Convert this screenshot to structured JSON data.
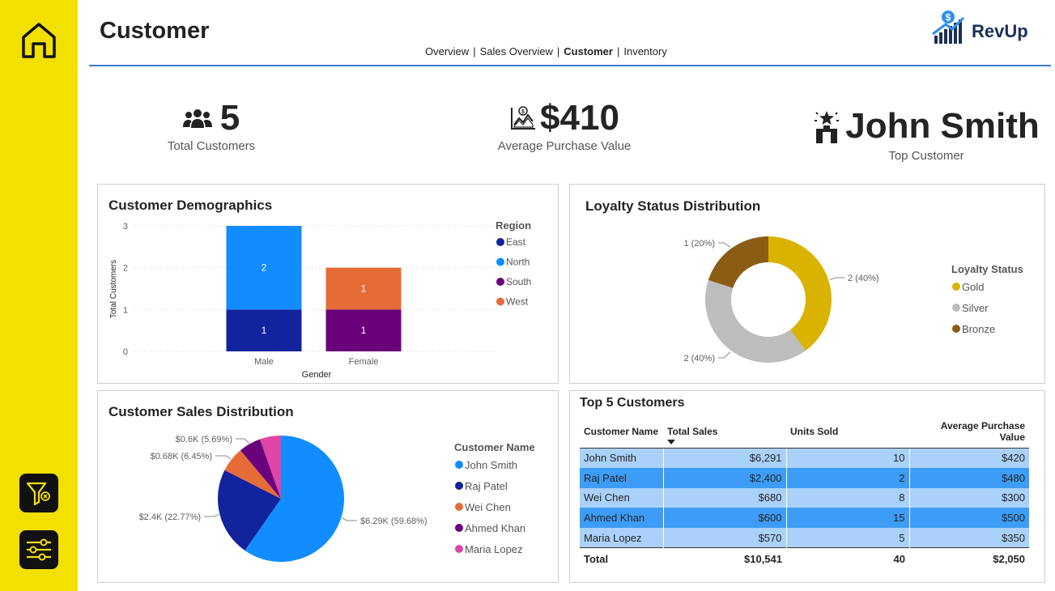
{
  "page": {
    "title": "Customer"
  },
  "nav": {
    "items": [
      {
        "label": "Overview",
        "active": false
      },
      {
        "label": "Sales Overview",
        "active": false
      },
      {
        "label": "Customer",
        "active": true
      },
      {
        "label": "Inventory",
        "active": false
      }
    ]
  },
  "logo": {
    "text": "RevUp"
  },
  "sidebar": {
    "icons": [
      "home-icon",
      "clear-filter-icon",
      "settings-sliders-icon"
    ]
  },
  "kpis": {
    "total_customers": {
      "value": "5",
      "label": "Total Customers"
    },
    "avg_purchase": {
      "value": "$410",
      "label": "Average Purchase Value"
    },
    "top_customer": {
      "value": "John Smith",
      "label": "Top Customer"
    }
  },
  "demographics": {
    "title": "Customer Demographics"
  },
  "loyalty": {
    "title": "Loyalty Status Distribution"
  },
  "sales_dist": {
    "title": "Customer Sales Distribution"
  },
  "top5": {
    "title": "Top 5 Customers",
    "columns": [
      "Customer Name",
      "Total Sales",
      "Units Sold",
      "Average Purchase Value"
    ],
    "rows": [
      [
        "John Smith",
        "$6,291",
        "10",
        "$420"
      ],
      [
        "Raj Patel",
        "$2,400",
        "2",
        "$480"
      ],
      [
        "Wei Chen",
        "$680",
        "8",
        "$300"
      ],
      [
        "Ahmed Khan",
        "$600",
        "15",
        "$500"
      ],
      [
        "Maria Lopez",
        "$570",
        "5",
        "$350"
      ]
    ],
    "total": [
      "Total",
      "$10,541",
      "40",
      "$2,050"
    ]
  },
  "colors": {
    "sidebar": "#f2e000",
    "accent_line": "#3a7bd5",
    "row_light": "#a9d1fa",
    "row_dark": "#3d9df6"
  },
  "chart_data": [
    {
      "type": "bar",
      "stacked": true,
      "title": "Customer Demographics",
      "xlabel": "Gender",
      "ylabel": "Total Customers",
      "categories": [
        "Male",
        "Female"
      ],
      "ylim": [
        0,
        3
      ],
      "yticks": [
        "0",
        "1",
        "2",
        "3"
      ],
      "legend_title": "Region",
      "legend_position": "right",
      "grid": true,
      "series": [
        {
          "name": "East",
          "color": "#12239e",
          "values": [
            1,
            0
          ]
        },
        {
          "name": "North",
          "color": "#118dff",
          "values": [
            2,
            0
          ]
        },
        {
          "name": "South",
          "color": "#6b007b",
          "values": [
            0,
            1
          ]
        },
        {
          "name": "West",
          "color": "#e66c37",
          "values": [
            0,
            1
          ]
        }
      ]
    },
    {
      "type": "pie",
      "donut": true,
      "title": "Loyalty Status Distribution",
      "legend_title": "Loyalty Status",
      "legend_position": "right",
      "slices": [
        {
          "name": "Gold",
          "value": 2,
          "label": "2 (40%)",
          "color": "#d9b300"
        },
        {
          "name": "Silver",
          "value": 2,
          "label": "2 (40%)",
          "color": "#bdbdbd"
        },
        {
          "name": "Bronze",
          "value": 1,
          "label": "1 (20%)",
          "color": "#8b5c14"
        }
      ]
    },
    {
      "type": "pie",
      "title": "Customer Sales Distribution",
      "legend_title": "Customer Name",
      "legend_position": "right",
      "slices": [
        {
          "name": "John Smith",
          "value": 6291,
          "label": "$6.29K (59.68%)",
          "color": "#118dff"
        },
        {
          "name": "Raj Patel",
          "value": 2400,
          "label": "$2.4K (22.77%)",
          "color": "#12239e"
        },
        {
          "name": "Wei Chen",
          "value": 680,
          "label": "$0.68K (6.45%)",
          "color": "#e66c37"
        },
        {
          "name": "Ahmed Khan",
          "value": 600,
          "label": "$0.6K (5.69%)",
          "color": "#6b007b"
        },
        {
          "name": "Maria Lopez",
          "value": 570,
          "label": "",
          "color": "#e044a7"
        }
      ]
    }
  ]
}
